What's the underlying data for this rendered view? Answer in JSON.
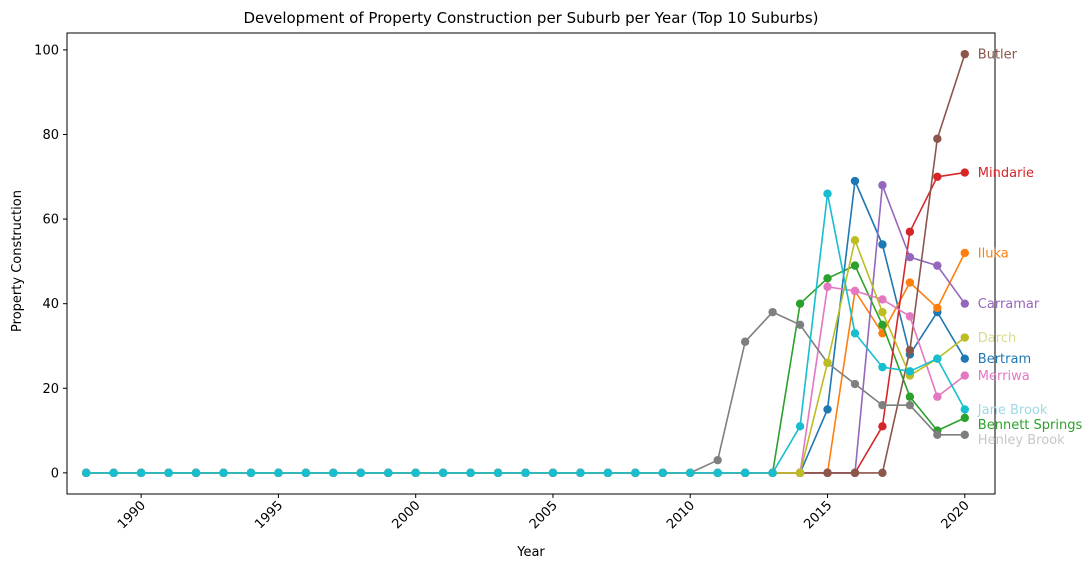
{
  "chart_data": {
    "type": "line",
    "title": "Development of Property Construction per Suburb per Year (Top 10 Suburbs)",
    "xlabel": "Year",
    "ylabel": "Property Construction",
    "xlim": [
      1987.3,
      2021.1
    ],
    "ylim": [
      -5,
      104
    ],
    "xticks": [
      1990,
      1995,
      2000,
      2005,
      2010,
      2015,
      2020
    ],
    "yticks": [
      0,
      20,
      40,
      60,
      80,
      100
    ],
    "grid": false,
    "legend": "labels at line ends",
    "x": [
      1988,
      1989,
      1990,
      1991,
      1992,
      1993,
      1994,
      1995,
      1996,
      1997,
      1998,
      1999,
      2000,
      2001,
      2002,
      2003,
      2004,
      2005,
      2006,
      2007,
      2008,
      2009,
      2010,
      2011,
      2012,
      2013,
      2014,
      2015,
      2016,
      2017,
      2018,
      2019,
      2020
    ],
    "series": [
      {
        "name": "Bertram",
        "color": "#1f77b4",
        "values": [
          0,
          0,
          0,
          0,
          0,
          0,
          0,
          0,
          0,
          0,
          0,
          0,
          0,
          0,
          0,
          0,
          0,
          0,
          0,
          0,
          0,
          0,
          0,
          0,
          0,
          0,
          0,
          15,
          69,
          54,
          28,
          38,
          27
        ]
      },
      {
        "name": "Iluka",
        "color": "#ff7f0e",
        "values": [
          0,
          0,
          0,
          0,
          0,
          0,
          0,
          0,
          0,
          0,
          0,
          0,
          0,
          0,
          0,
          0,
          0,
          0,
          0,
          0,
          0,
          0,
          0,
          0,
          0,
          0,
          0,
          0,
          43,
          33,
          45,
          39,
          52
        ]
      },
      {
        "name": "Bennett Springs",
        "color": "#2ca02c",
        "values": [
          0,
          0,
          0,
          0,
          0,
          0,
          0,
          0,
          0,
          0,
          0,
          0,
          0,
          0,
          0,
          0,
          0,
          0,
          0,
          0,
          0,
          0,
          0,
          0,
          0,
          0,
          40,
          46,
          49,
          35,
          18,
          10,
          13
        ]
      },
      {
        "name": "Mindarie",
        "color": "#d62728",
        "values": [
          0,
          0,
          0,
          0,
          0,
          0,
          0,
          0,
          0,
          0,
          0,
          0,
          0,
          0,
          0,
          0,
          0,
          0,
          0,
          0,
          0,
          0,
          0,
          0,
          0,
          0,
          0,
          0,
          0,
          11,
          57,
          70,
          71
        ]
      },
      {
        "name": "Carramar",
        "color": "#9467bd",
        "values": [
          0,
          0,
          0,
          0,
          0,
          0,
          0,
          0,
          0,
          0,
          0,
          0,
          0,
          0,
          0,
          0,
          0,
          0,
          0,
          0,
          0,
          0,
          0,
          0,
          0,
          0,
          0,
          0,
          0,
          68,
          51,
          49,
          40
        ]
      },
      {
        "name": "Butler",
        "color": "#8c564b",
        "values": [
          0,
          0,
          0,
          0,
          0,
          0,
          0,
          0,
          0,
          0,
          0,
          0,
          0,
          0,
          0,
          0,
          0,
          0,
          0,
          0,
          0,
          0,
          0,
          0,
          0,
          0,
          0,
          0,
          0,
          0,
          29,
          79,
          99
        ]
      },
      {
        "name": "Merriwa",
        "color": "#e377c2",
        "values": [
          0,
          0,
          0,
          0,
          0,
          0,
          0,
          0,
          0,
          0,
          0,
          0,
          0,
          0,
          0,
          0,
          0,
          0,
          0,
          0,
          0,
          0,
          0,
          0,
          0,
          0,
          0,
          44,
          43,
          41,
          37,
          18,
          23
        ]
      },
      {
        "name": "Henley Brook",
        "color": "#7f7f7f",
        "label_color": "#c7c7c7",
        "values": [
          0,
          0,
          0,
          0,
          0,
          0,
          0,
          0,
          0,
          0,
          0,
          0,
          0,
          0,
          0,
          0,
          0,
          0,
          0,
          0,
          0,
          0,
          0,
          3,
          31,
          38,
          35,
          26,
          21,
          16,
          16,
          9,
          9
        ]
      },
      {
        "name": "Darch",
        "color": "#bcbd22",
        "label_color": "#dbdb8d",
        "values": [
          0,
          0,
          0,
          0,
          0,
          0,
          0,
          0,
          0,
          0,
          0,
          0,
          0,
          0,
          0,
          0,
          0,
          0,
          0,
          0,
          0,
          0,
          0,
          0,
          0,
          0,
          0,
          26,
          55,
          38,
          23,
          27,
          32
        ]
      },
      {
        "name": "Jane Brook",
        "color": "#17becf",
        "label_color": "#9edae5",
        "values": [
          0,
          0,
          0,
          0,
          0,
          0,
          0,
          0,
          0,
          0,
          0,
          0,
          0,
          0,
          0,
          0,
          0,
          0,
          0,
          0,
          0,
          0,
          0,
          0,
          0,
          0,
          11,
          66,
          33,
          25,
          24,
          27,
          15
        ]
      }
    ]
  }
}
